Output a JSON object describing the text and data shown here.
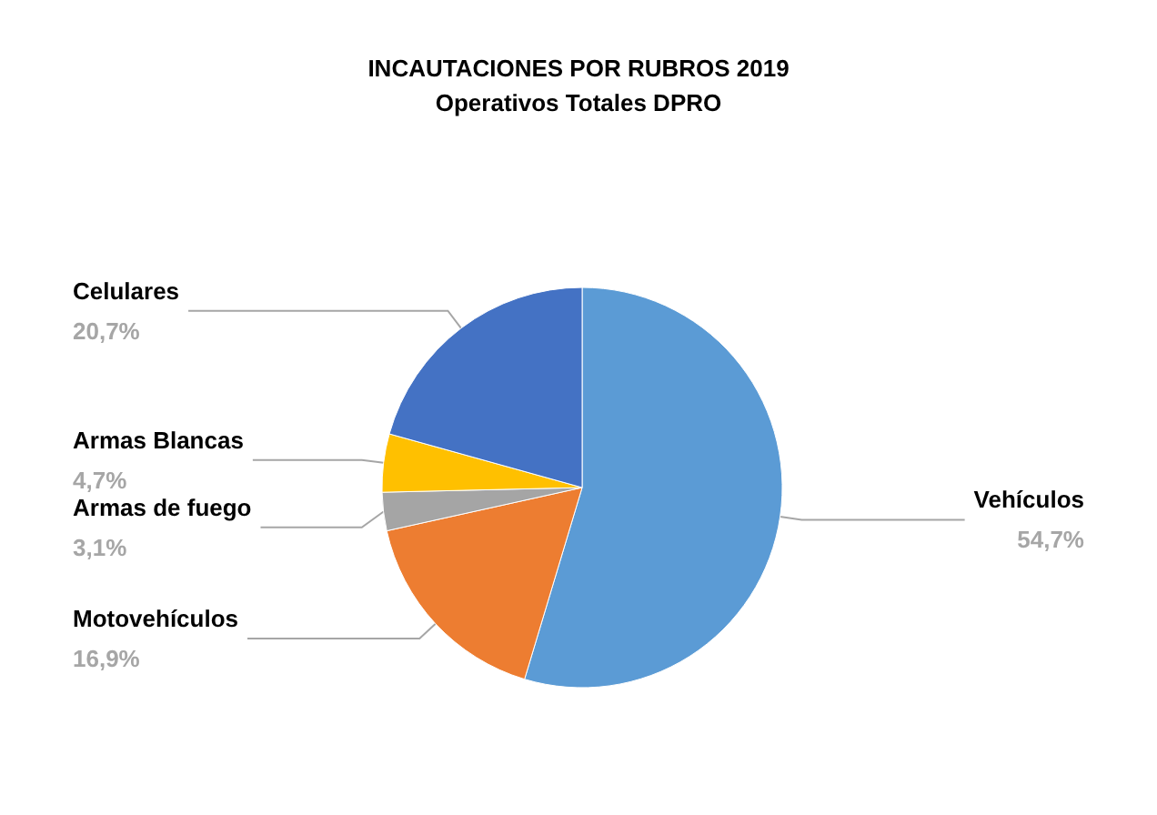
{
  "chart_data": {
    "type": "pie",
    "title": "INCAUTACIONES POR RUBROS 2019",
    "subtitle": "Operativos Totales DPRO",
    "categories": [
      "Vehículos",
      "Motovehículos",
      "Armas de fuego",
      "Armas Blancas",
      "Celulares"
    ],
    "values": [
      54.7,
      16.9,
      3.1,
      4.7,
      20.7
    ],
    "colors": [
      "#5b9bd5",
      "#ed7d31",
      "#a5a5a5",
      "#ffc000",
      "#4472c4"
    ],
    "value_labels": [
      "54,7%",
      "16,9%",
      "3,1%",
      "4,7%",
      "20,7%"
    ],
    "legend": false
  }
}
